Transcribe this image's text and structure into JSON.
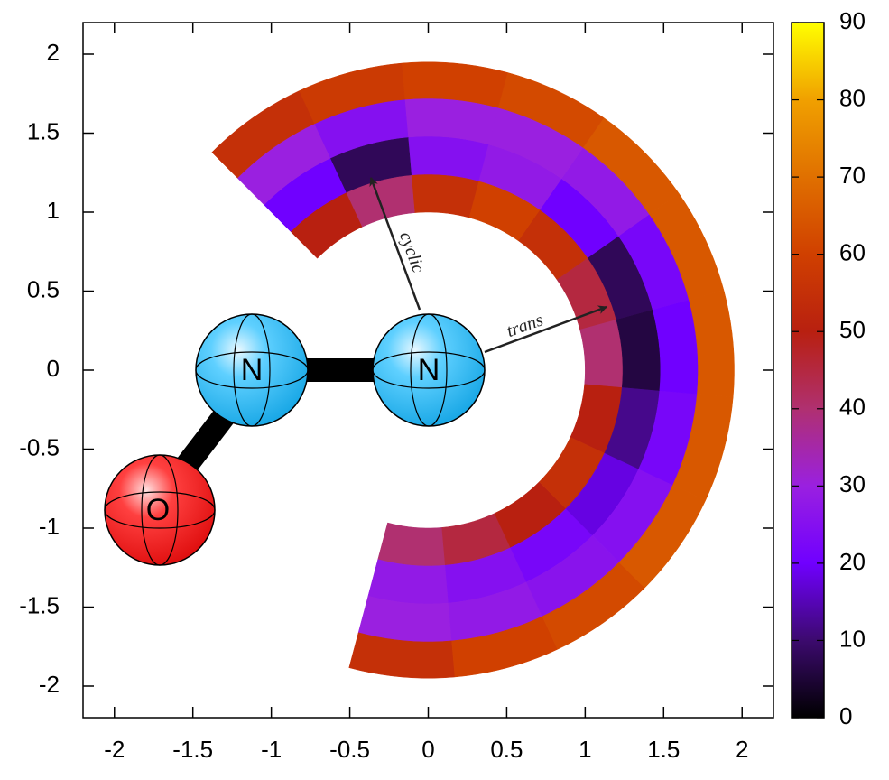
{
  "chart_data": {
    "type": "polar-heatmap",
    "xlim": [
      -2.2,
      2.2
    ],
    "ylim": [
      -2.2,
      2.2
    ],
    "xticks": [
      -2,
      -1.5,
      -1,
      -0.5,
      0,
      0.5,
      1,
      1.5,
      2
    ],
    "yticks": [
      -2,
      -1.5,
      -1,
      -0.5,
      0,
      0.5,
      1,
      1.5,
      2
    ],
    "zlim": [
      0,
      90
    ],
    "zticks": [
      0,
      10,
      20,
      30,
      40,
      50,
      60,
      70,
      80,
      90
    ],
    "colormap": [
      "#000000",
      "#3c0a6e",
      "#7000ff",
      "#9a20e0",
      "#b03070",
      "#b82010",
      "#d04000",
      "#e07000",
      "#f0a000",
      "#ffff00"
    ],
    "theta_edges": [
      -105,
      -85,
      -65,
      -45,
      -25,
      -5,
      15,
      35,
      55,
      75,
      95,
      115,
      135
    ],
    "r_edges": [
      1.0,
      1.24,
      1.48,
      1.72,
      1.95
    ],
    "values": [
      [
        40,
        28,
        30,
        55
      ],
      [
        45,
        25,
        28,
        60
      ],
      [
        50,
        22,
        26,
        62
      ],
      [
        55,
        18,
        25,
        65
      ],
      [
        50,
        12,
        22,
        65
      ],
      [
        40,
        6,
        20,
        65
      ],
      [
        45,
        8,
        22,
        65
      ],
      [
        55,
        20,
        28,
        65
      ],
      [
        60,
        28,
        30,
        62
      ],
      [
        55,
        25,
        30,
        60
      ],
      [
        40,
        8,
        25,
        58
      ],
      [
        50,
        20,
        30,
        55
      ]
    ],
    "annotations": [
      "cyclic",
      "trans"
    ],
    "atom_labels": [
      "N",
      "N",
      "O"
    ]
  }
}
